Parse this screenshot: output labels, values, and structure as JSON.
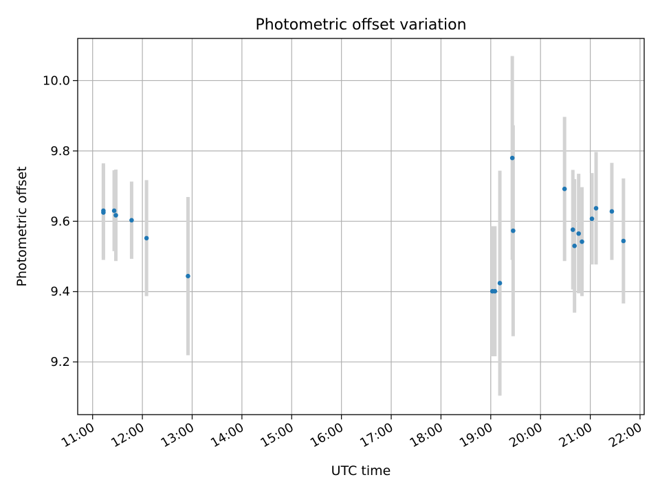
{
  "chart_data": {
    "type": "scatter",
    "title": "Photometric offset variation",
    "xlabel": "UTC time",
    "ylabel": "Photometric offset",
    "x_ticks": [
      "11:00",
      "12:00",
      "13:00",
      "14:00",
      "15:00",
      "16:00",
      "17:00",
      "18:00",
      "19:00",
      "20:00",
      "21:00",
      "22:00"
    ],
    "y_ticks": [
      "9.2",
      "9.4",
      "9.6",
      "9.8",
      "10.0"
    ],
    "xlim": [
      "10:42",
      "22:05"
    ],
    "ylim": [
      9.05,
      10.12
    ],
    "grid": true,
    "point_color": "#1f77b4",
    "errorbar_color": "#d3d3d3",
    "points": [
      {
        "x": "11:13",
        "y": 9.63,
        "err": 0.135
      },
      {
        "x": "11:13",
        "y": 9.625,
        "err": 0.135
      },
      {
        "x": "11:26",
        "y": 9.63,
        "err": 0.115
      },
      {
        "x": "11:28",
        "y": 9.617,
        "err": 0.13
      },
      {
        "x": "11:47",
        "y": 9.603,
        "err": 0.11
      },
      {
        "x": "12:05",
        "y": 9.552,
        "err": 0.165
      },
      {
        "x": "12:55",
        "y": 9.444,
        "err": 0.225
      },
      {
        "x": "19:02",
        "y": 9.401,
        "err": 0.185
      },
      {
        "x": "19:05",
        "y": 9.401,
        "err": 0.185
      },
      {
        "x": "19:11",
        "y": 9.424,
        "err": 0.32
      },
      {
        "x": "19:26",
        "y": 9.78,
        "err": 0.29
      },
      {
        "x": "19:27",
        "y": 9.573,
        "err": 0.3
      },
      {
        "x": "20:29",
        "y": 9.692,
        "err": 0.205
      },
      {
        "x": "20:39",
        "y": 9.576,
        "err": 0.17
      },
      {
        "x": "20:41",
        "y": 9.53,
        "err": 0.19
      },
      {
        "x": "20:46",
        "y": 9.565,
        "err": 0.17
      },
      {
        "x": "20:50",
        "y": 9.542,
        "err": 0.155
      },
      {
        "x": "21:02",
        "y": 9.607,
        "err": 0.13
      },
      {
        "x": "21:07",
        "y": 9.637,
        "err": 0.16
      },
      {
        "x": "21:26",
        "y": 9.628,
        "err": 0.138
      },
      {
        "x": "21:40",
        "y": 9.544,
        "err": 0.178
      }
    ]
  }
}
